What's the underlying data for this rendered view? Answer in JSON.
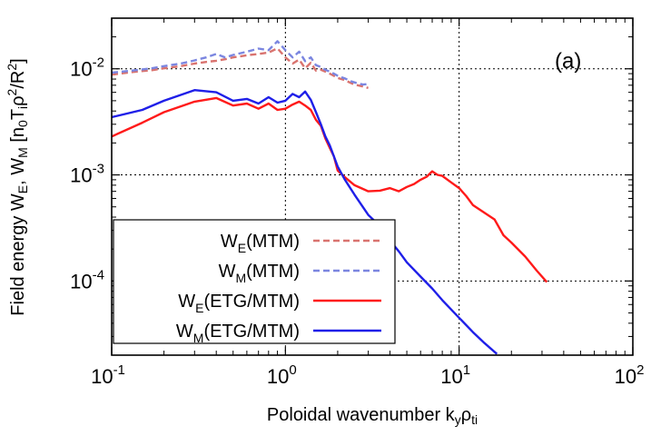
{
  "chart_data": {
    "type": "line",
    "xscale": "log",
    "yscale": "log",
    "xlim": [
      0.1,
      100
    ],
    "ylim": [
      2e-05,
      0.03
    ],
    "grid": true,
    "legend_position": "bottom-left",
    "panel_label": "(a)",
    "xlabel": {
      "main": "Poloidal wavenumber k",
      "sub1": "y",
      "mid": "ρ",
      "sub2": "ti"
    },
    "ylabel": {
      "pre": "Field energy W",
      "sub1": "E",
      "mid": ", W",
      "sub2": "M",
      "post1": " [n",
      "sub3": "0",
      "post2": "T",
      "sub4": "i",
      "post3": "ρ",
      "sup1": "2",
      "post4": "/R",
      "sup2": "2",
      "post5": "]"
    },
    "xticks": [
      {
        "value": 0.1,
        "base": "10",
        "exp": "-1"
      },
      {
        "value": 1,
        "base": "10",
        "exp": "0"
      },
      {
        "value": 10,
        "base": "10",
        "exp": "1"
      },
      {
        "value": 100,
        "base": "10",
        "exp": "2"
      }
    ],
    "yticks": [
      {
        "value": 0.01,
        "base": "10",
        "exp": "-2"
      },
      {
        "value": 0.001,
        "base": "10",
        "exp": "-3"
      },
      {
        "value": 0.0001,
        "base": "10",
        "exp": "-4"
      }
    ],
    "series": [
      {
        "legend": {
          "base": "W",
          "sub": "E",
          "rest": "(MTM)"
        },
        "color": "#d9736f",
        "dash": true,
        "x": [
          0.1,
          0.13,
          0.17,
          0.2,
          0.25,
          0.3,
          0.35,
          0.4,
          0.45,
          0.5,
          0.6,
          0.7,
          0.8,
          0.9,
          1.0,
          1.1,
          1.2,
          1.3,
          1.4,
          1.5,
          1.6,
          1.7,
          1.8,
          1.9,
          2.0,
          2.2,
          2.4,
          2.6,
          2.8,
          3.0
        ],
        "y": [
          0.0088,
          0.0093,
          0.0097,
          0.0101,
          0.0106,
          0.0112,
          0.0116,
          0.0119,
          0.0123,
          0.0128,
          0.0134,
          0.0138,
          0.0142,
          0.0156,
          0.0128,
          0.0112,
          0.0122,
          0.0101,
          0.0114,
          0.0096,
          0.0098,
          0.0094,
          0.009,
          0.0086,
          0.0082,
          0.0078,
          0.0073,
          0.007,
          0.0068,
          0.0066
        ]
      },
      {
        "legend": {
          "base": "W",
          "sub": "M",
          "rest": "(MTM)"
        },
        "color": "#7b86e0",
        "dash": true,
        "x": [
          0.1,
          0.13,
          0.17,
          0.2,
          0.25,
          0.3,
          0.35,
          0.4,
          0.45,
          0.5,
          0.6,
          0.7,
          0.8,
          0.9,
          1.0,
          1.1,
          1.2,
          1.3,
          1.4,
          1.5,
          1.6,
          1.7,
          1.8,
          1.9,
          2.0,
          2.2,
          2.4,
          2.6,
          2.8,
          3.0
        ],
        "y": [
          0.0092,
          0.0096,
          0.0101,
          0.0106,
          0.0112,
          0.012,
          0.0128,
          0.0138,
          0.0128,
          0.0135,
          0.0145,
          0.0155,
          0.015,
          0.0182,
          0.015,
          0.0128,
          0.0145,
          0.0118,
          0.0128,
          0.0108,
          0.0104,
          0.0098,
          0.0094,
          0.009,
          0.0086,
          0.0081,
          0.0076,
          0.0073,
          0.0071,
          0.0072
        ]
      },
      {
        "legend": {
          "base": "W",
          "sub": "E",
          "rest": "(ETG/MTM)"
        },
        "color": "#ff1a1a",
        "dash": false,
        "x": [
          0.1,
          0.15,
          0.2,
          0.3,
          0.4,
          0.5,
          0.6,
          0.7,
          0.8,
          0.9,
          1.0,
          1.1,
          1.2,
          1.3,
          1.4,
          1.5,
          1.6,
          1.7,
          1.8,
          1.9,
          2.0,
          2.2,
          2.5,
          3.0,
          3.5,
          4.0,
          4.5,
          5.0,
          5.5,
          6.0,
          6.5,
          7.0,
          7.5,
          8.0,
          9.0,
          10.0,
          11.0,
          12.0,
          14.0,
          16.0,
          18.0,
          20.0,
          24.0,
          28.0,
          32.0
        ],
        "y": [
          0.0023,
          0.0031,
          0.0039,
          0.0049,
          0.0053,
          0.0045,
          0.0047,
          0.0042,
          0.0047,
          0.0041,
          0.0042,
          0.0046,
          0.0049,
          0.0045,
          0.0041,
          0.0033,
          0.0029,
          0.0022,
          0.0018,
          0.0015,
          0.0011,
          0.00095,
          0.0008,
          0.0007,
          0.00071,
          0.00075,
          0.0007,
          0.00077,
          0.00082,
          0.0009,
          0.00096,
          0.00108,
          0.001,
          0.00098,
          0.00085,
          0.00075,
          0.00063,
          0.00052,
          0.00044,
          0.00038,
          0.00027,
          0.00023,
          0.00017,
          0.000125,
          9.75e-05
        ]
      },
      {
        "legend": {
          "base": "W",
          "sub": "M",
          "rest": "(ETG/MTM)"
        },
        "color": "#1f1fe8",
        "dash": false,
        "x": [
          0.1,
          0.15,
          0.2,
          0.3,
          0.4,
          0.5,
          0.6,
          0.7,
          0.8,
          0.9,
          1.0,
          1.1,
          1.2,
          1.3,
          1.4,
          1.5,
          1.6,
          1.7,
          1.8,
          1.9,
          2.0,
          2.2,
          2.5,
          3.0,
          3.5,
          4.0,
          4.5,
          5.0,
          6.0,
          7.0,
          8.0,
          10.0,
          12.0,
          14.0,
          16.5
        ],
        "y": [
          0.0035,
          0.0041,
          0.005,
          0.0063,
          0.006,
          0.005,
          0.0052,
          0.0047,
          0.0054,
          0.0048,
          0.005,
          0.0058,
          0.0054,
          0.0061,
          0.0051,
          0.0039,
          0.003,
          0.0023,
          0.0019,
          0.0015,
          0.0012,
          0.0009,
          0.00065,
          0.00042,
          0.00033,
          0.00024,
          0.00019,
          0.00015,
          0.00011,
          8.5e-05,
          6.6e-05,
          4.5e-05,
          3.3e-05,
          2.6e-05,
          2.05e-05
        ]
      }
    ]
  }
}
